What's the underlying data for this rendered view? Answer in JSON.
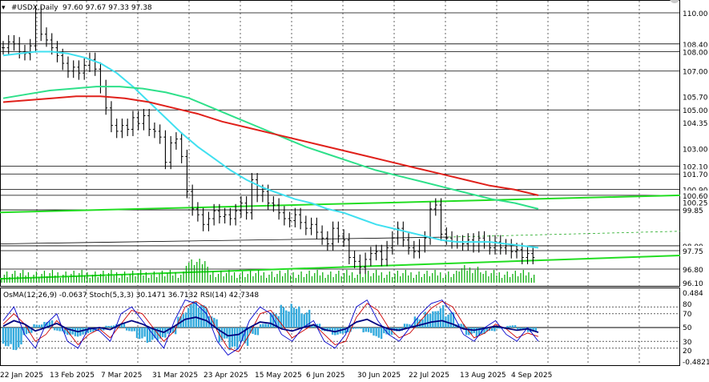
{
  "header": {
    "symbol": "#USDX,Daily",
    "ohlc": "97.60 97.67 97.33 97.38"
  },
  "indicator_header": "OsMA(12,26,9) -0.0637  Stoch(5,3,3) 30.1471 36.7132  RSI(14) 42.7348",
  "colors": {
    "price_bars": "#000000",
    "ema_fast": "#40e0f0",
    "ema_mid": "#2ee08a",
    "ema_slow": "#e0201a",
    "channel": "#22dd22",
    "volume": "#00aa00",
    "osma": "#33aadd",
    "stoch_main": "#0000cc",
    "stoch_signal": "#cc0000",
    "rsi": "#000080",
    "level_lines": "#000000"
  },
  "chart_data": [
    {
      "type": "line",
      "title": "#USDX,Daily",
      "ylim": [
        96.1,
        111.3
      ],
      "level_labels": [
        "110.00",
        "108.40",
        "108.00",
        "107.00",
        "105.00",
        "102.10",
        "101.70",
        "100.90",
        "100.60",
        "99.85",
        "98.00",
        "97.75",
        "96.80"
      ],
      "tick_labels": [
        "105.70",
        "104.35",
        "103.00",
        "100.25",
        "96.10"
      ],
      "x_labels": [
        "22 Jan 2025",
        "13 Feb 2025",
        "7 Mar 2025",
        "31 Mar 2025",
        "23 Apr 2025",
        "15 May 2025",
        "6 Jun 2025",
        "30 Jun 2025",
        "22 Jul 2025",
        "13 Aug 2025",
        "4 Sep 2025"
      ],
      "series": [
        {
          "name": "close",
          "values": [
            108.2,
            108.5,
            108.4,
            108.0,
            107.9,
            108.3,
            110.0,
            108.9,
            108.6,
            108.2,
            107.8,
            107.4,
            107.0,
            107.2,
            106.9,
            107.3,
            107.6,
            107.1,
            106.2,
            105.1,
            104.2,
            103.9,
            104.2,
            104.0,
            104.6,
            104.3,
            104.7,
            104.0,
            103.9,
            103.6,
            102.3,
            103.3,
            103.5,
            102.6,
            100.8,
            99.9,
            99.6,
            99.1,
            99.4,
            99.8,
            99.5,
            99.6,
            99.4,
            99.8,
            100.2,
            99.7,
            101.4,
            100.6,
            100.8,
            100.2,
            100.1,
            99.7,
            99.4,
            99.3,
            99.6,
            99.2,
            98.9,
            99.1,
            98.7,
            98.4,
            98.1,
            98.9,
            98.5,
            98.3,
            97.4,
            97.2,
            96.9,
            97.3,
            97.6,
            97.7,
            97.3,
            97.9,
            98.4,
            98.9,
            98.3,
            97.9,
            97.7,
            98.0,
            98.4,
            99.9,
            100.1,
            98.6,
            98.4,
            98.2,
            98.2,
            98.1,
            98.3,
            98.0,
            98.4,
            98.2,
            97.9,
            98.2,
            97.9,
            98.0,
            97.7,
            97.8,
            97.4,
            97.6,
            97.4
          ]
        },
        {
          "name": "EMA fast",
          "values": [
            107.8,
            107.9,
            108.0,
            108.0,
            107.9,
            107.7,
            107.4,
            106.9,
            106.2,
            105.4,
            104.6,
            103.8,
            103.1,
            102.5,
            101.9,
            101.4,
            101.0,
            100.7,
            100.4,
            100.2,
            99.9,
            99.7,
            99.4,
            99.1,
            98.9,
            98.7,
            98.5,
            98.3,
            98.2,
            98.2,
            98.2,
            98.1,
            98.0,
            97.9
          ]
        },
        {
          "name": "EMA mid",
          "values": [
            105.6,
            105.8,
            106.0,
            106.1,
            106.2,
            106.2,
            106.1,
            105.9,
            105.6,
            105.1,
            104.6,
            104.1,
            103.6,
            103.1,
            102.7,
            102.3,
            101.9,
            101.6,
            101.3,
            101.0,
            100.7,
            100.4,
            100.2,
            99.9
          ]
        },
        {
          "name": "EMA slow",
          "values": [
            105.4,
            105.5,
            105.6,
            105.7,
            105.7,
            105.6,
            105.4,
            105.1,
            104.8,
            104.4,
            104.1,
            103.8,
            103.5,
            103.2,
            102.9,
            102.6,
            102.3,
            102.0,
            101.7,
            101.4,
            101.1,
            100.9,
            100.6
          ]
        }
      ]
    },
    {
      "type": "bar",
      "title": "OsMA(12,26,9) Stoch(5,3,3) RSI(14)",
      "ylim": [
        -0.4821,
        0.484
      ],
      "right_labels": [
        "0.484",
        "80",
        "70",
        "50",
        "30",
        "20",
        "-0.4821"
      ],
      "series": [
        {
          "name": "OsMA",
          "values": [
            -0.25,
            -0.3,
            -0.1,
            0.05,
            0.1,
            -0.05,
            -0.1,
            -0.12,
            -0.08,
            -0.05,
            0.03,
            0.06,
            -0.05,
            -0.15,
            -0.2,
            -0.18,
            -0.1,
            0.2,
            0.35,
            0.3,
            0.15,
            -0.2,
            -0.35,
            -0.25,
            -0.1,
            0.05,
            0.2,
            0.3,
            0.35,
            0.25,
            0.05,
            -0.05,
            -0.1,
            -0.08,
            -0.02,
            -0.08,
            -0.15,
            -0.1,
            -0.05,
            0.05,
            0.15,
            0.25,
            0.3,
            0.2,
            0.05,
            -0.1,
            -0.12,
            -0.06,
            -0.02,
            0.03,
            -0.03,
            -0.06
          ]
        },
        {
          "name": "Stoch main",
          "values": [
            60,
            80,
            40,
            20,
            55,
            70,
            30,
            20,
            50,
            45,
            30,
            70,
            80,
            60,
            40,
            20,
            60,
            90,
            85,
            70,
            30,
            10,
            20,
            60,
            80,
            70,
            40,
            30,
            50,
            60,
            30,
            20,
            40,
            80,
            90,
            60,
            40,
            30,
            50,
            70,
            85,
            90,
            70,
            40,
            30,
            50,
            60,
            40,
            30,
            50,
            30
          ]
        },
        {
          "name": "Stoch signal",
          "values": [
            55,
            70,
            55,
            30,
            40,
            60,
            45,
            25,
            40,
            48,
            35,
            55,
            75,
            70,
            50,
            30,
            45,
            80,
            88,
            78,
            45,
            20,
            15,
            40,
            70,
            75,
            55,
            35,
            45,
            55,
            40,
            25,
            30,
            65,
            85,
            75,
            50,
            35,
            42,
            60,
            78,
            88,
            80,
            55,
            35,
            42,
            55,
            48,
            35,
            42,
            37
          ]
        },
        {
          "name": "RSI",
          "values": [
            52,
            60,
            55,
            45,
            50,
            56,
            48,
            44,
            48,
            50,
            47,
            55,
            60,
            55,
            48,
            43,
            52,
            62,
            65,
            60,
            48,
            38,
            40,
            50,
            58,
            56,
            48,
            45,
            50,
            54,
            47,
            44,
            48,
            58,
            62,
            54,
            48,
            46,
            50,
            54,
            58,
            60,
            55,
            48,
            46,
            49,
            52,
            49,
            46,
            48,
            43
          ]
        }
      ]
    }
  ]
}
